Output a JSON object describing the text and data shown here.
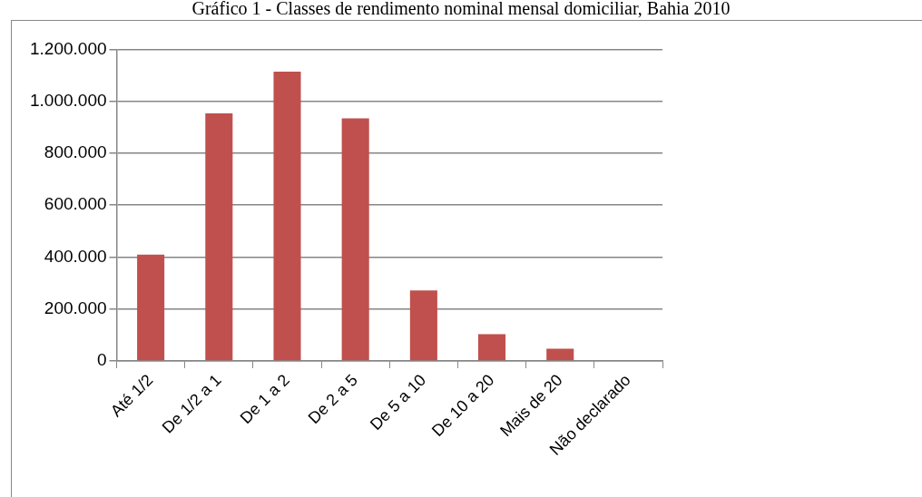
{
  "chart_data": {
    "type": "bar",
    "title": "Gráfico 1 - Classes de rendimento nominal mensal domiciliar, Bahia 2010",
    "categories": [
      "Até 1/2",
      "De 1/2 a 1",
      "De 1 a 2",
      "De 2 a 5",
      "De 5 a 10",
      "De 10 a 20",
      "Mais de 20",
      "Não declarado"
    ],
    "values": [
      409000,
      953000,
      1114000,
      934000,
      271000,
      103000,
      47000,
      0
    ],
    "color": "#c0504d",
    "ylim": [
      0,
      1200000
    ],
    "yticks": [
      0,
      {
        "value": 200000,
        "label": "200.000"
      },
      {
        "value": 400000,
        "label": "400.000"
      },
      {
        "value": 600000,
        "label": "600.000"
      },
      {
        "value": 800000,
        "label": "800.000"
      },
      {
        "value": 1000000,
        "label": "1.000.000"
      },
      {
        "value": 1200000,
        "label": "1.200.000"
      }
    ],
    "grid": "y",
    "legend": false
  }
}
